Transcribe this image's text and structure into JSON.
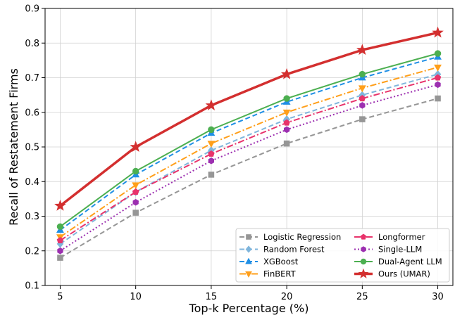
{
  "chart_data": {
    "type": "line",
    "xlabel": "Top-k Percentage (%)",
    "ylabel": "Recall of Restatement Firms",
    "x": [
      5,
      10,
      15,
      20,
      25,
      30
    ],
    "xlim": [
      4,
      31
    ],
    "ylim": [
      0.1,
      0.9
    ],
    "xticks": [
      5,
      10,
      15,
      20,
      25,
      30
    ],
    "yticks": [
      0.1,
      0.2,
      0.3,
      0.4,
      0.5,
      0.6,
      0.7,
      0.8,
      0.9
    ],
    "grid": true,
    "legend_position": "bottom-right",
    "legend_columns": 2,
    "series": [
      {
        "name": "Logistic Regression",
        "values": [
          0.18,
          0.31,
          0.42,
          0.51,
          0.58,
          0.64
        ],
        "color": "#969696",
        "dash": "dashed",
        "marker": "square",
        "width": 2
      },
      {
        "name": "Random Forest",
        "values": [
          0.22,
          0.37,
          0.49,
          0.58,
          0.65,
          0.71
        ],
        "color": "#7fb5dc",
        "dash": "dashed",
        "marker": "diamond",
        "width": 2
      },
      {
        "name": "XGBoost",
        "values": [
          0.26,
          0.42,
          0.54,
          0.63,
          0.7,
          0.76
        ],
        "color": "#1f8fe5",
        "dash": "dashed",
        "marker": "triangle-up",
        "width": 2
      },
      {
        "name": "FinBERT",
        "values": [
          0.24,
          0.39,
          0.51,
          0.6,
          0.67,
          0.73
        ],
        "color": "#ff9f1a",
        "dash": "dashdot",
        "marker": "triangle-down",
        "width": 2
      },
      {
        "name": "Longformer",
        "values": [
          0.23,
          0.37,
          0.48,
          0.57,
          0.64,
          0.7
        ],
        "color": "#e8336b",
        "dash": "dashdot",
        "marker": "pentagon",
        "width": 2
      },
      {
        "name": "Single-LLM",
        "values": [
          0.2,
          0.34,
          0.46,
          0.55,
          0.62,
          0.68
        ],
        "color": "#9c2fb0",
        "dash": "dotted",
        "marker": "hexagon",
        "width": 2
      },
      {
        "name": "Dual-Agent LLM",
        "values": [
          0.27,
          0.43,
          0.55,
          0.64,
          0.71,
          0.77
        ],
        "color": "#4caf50",
        "dash": "solid",
        "marker": "circle",
        "width": 2
      },
      {
        "name": "Ours (UMAR)",
        "values": [
          0.33,
          0.5,
          0.62,
          0.71,
          0.78,
          0.83
        ],
        "color": "#d32f2f",
        "dash": "solid",
        "marker": "star",
        "width": 3.5
      }
    ]
  }
}
